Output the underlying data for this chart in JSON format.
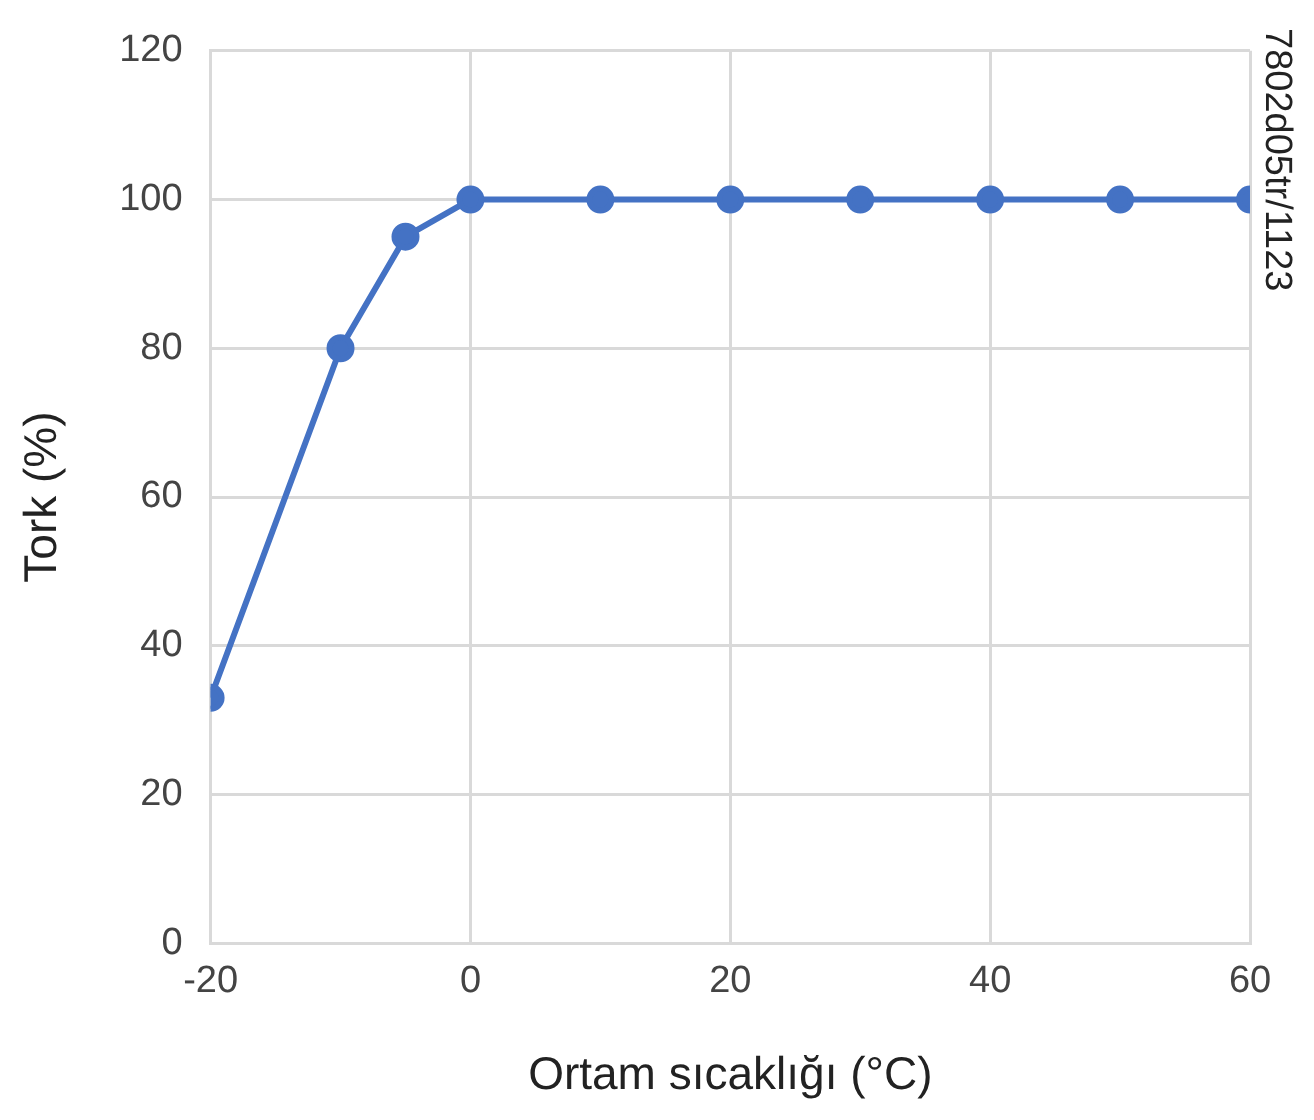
{
  "chart_data": {
    "type": "line",
    "xlabel": "Ortam sıcaklığı (°C)",
    "ylabel": "Tork (%)",
    "x": [
      -20,
      -10,
      -5,
      0,
      10,
      20,
      30,
      40,
      50,
      60
    ],
    "series": [
      {
        "color": "#4472c4",
        "values": [
          33,
          80,
          95,
          100,
          100,
          100,
          100,
          100,
          100,
          100
        ]
      }
    ],
    "xlim": [
      -20,
      60
    ],
    "xticks": [
      -20,
      0,
      20,
      40,
      60
    ],
    "ylim": [
      0,
      120
    ],
    "yticks": [
      0,
      20,
      40,
      60,
      80,
      100,
      120
    ],
    "grid": true,
    "legend": false,
    "marker": "circle",
    "line_style": "solid",
    "annotations": [
      "7802d05tr/1123"
    ]
  }
}
